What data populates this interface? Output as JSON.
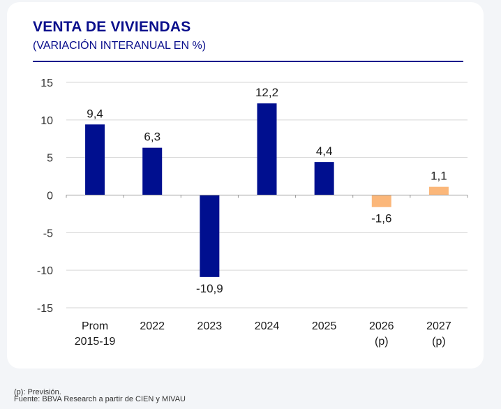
{
  "header": {
    "title": "VENTA DE VIVIENDAS",
    "subtitle": "(VARIACIÓN INTERANUAL EN %)"
  },
  "footer": {
    "note": "(p): Previsión.",
    "source": "Fuente: BBVA Research a partir de CIEN y MIVAU"
  },
  "colors": {
    "actual": "#000f8f",
    "forecast": "#fbb77a",
    "grid": "#d6d6d6",
    "axis": "#9a9a9a",
    "text": "#1a1a1a"
  },
  "chart_data": {
    "type": "bar",
    "title": "VENTA DE VIVIENDAS",
    "subtitle": "(VARIACIÓN INTERANUAL EN %)",
    "categories": [
      [
        "Prom",
        "2015-19"
      ],
      [
        "2022"
      ],
      [
        "2023"
      ],
      [
        "2024"
      ],
      [
        "2025"
      ],
      [
        "2026",
        "(p)"
      ],
      [
        "2027",
        "(p)"
      ]
    ],
    "values": [
      9.4,
      6.3,
      -10.9,
      12.2,
      4.4,
      -1.6,
      1.1
    ],
    "value_labels": [
      "9,4",
      "6,3",
      "-10,9",
      "12,2",
      "4,4",
      "-1,6",
      "1,1"
    ],
    "forecast": [
      false,
      false,
      false,
      false,
      false,
      true,
      true
    ],
    "ylim": [
      -15,
      15
    ],
    "yticks": [
      15,
      10,
      5,
      0,
      -5,
      -10,
      -15
    ],
    "ytick_labels": [
      "15",
      "10",
      "5",
      "0",
      "-5",
      "-10",
      "-15"
    ],
    "xlabel": "",
    "ylabel": "",
    "grid": true
  }
}
